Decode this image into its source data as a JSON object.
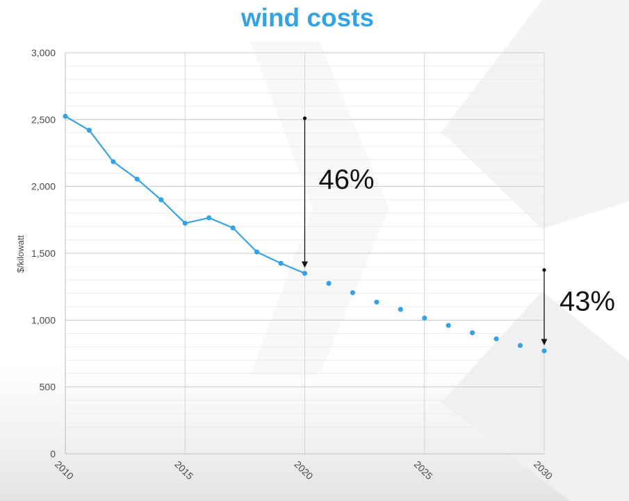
{
  "title": "wind costs",
  "chart_data": {
    "type": "line",
    "title": "wind costs",
    "xlabel": "",
    "ylabel": "$/kilowatt",
    "xlim": [
      2010,
      2030
    ],
    "ylim": [
      0,
      3000
    ],
    "x_ticks": [
      "2010",
      "2015",
      "2020",
      "2025",
      "2030"
    ],
    "y_ticks": [
      "0",
      "500",
      "1,000",
      "1,500",
      "2,000",
      "2,500",
      "3,000"
    ],
    "grid": true,
    "series": [
      {
        "style": "solid-line-with-markers",
        "color": "#34a3e6",
        "x": [
          2010,
          2011,
          2012,
          2013,
          2014,
          2015,
          2016,
          2017,
          2018,
          2019,
          2020
        ],
        "values": [
          2525,
          2420,
          2185,
          2055,
          1900,
          1725,
          1765,
          1690,
          1510,
          1425,
          1350
        ]
      },
      {
        "style": "markers-only",
        "color": "#34a3e6",
        "x": [
          2021,
          2022,
          2023,
          2024,
          2025,
          2026,
          2027,
          2028,
          2029,
          2030
        ],
        "values": [
          1275,
          1205,
          1135,
          1080,
          1015,
          960,
          905,
          860,
          810,
          770
        ]
      }
    ],
    "annotations": [
      {
        "text": "46%",
        "x": 2020,
        "from": 2510,
        "to": 1350
      },
      {
        "text": "43%",
        "x": 2030,
        "from": 1375,
        "to": 770
      }
    ]
  }
}
